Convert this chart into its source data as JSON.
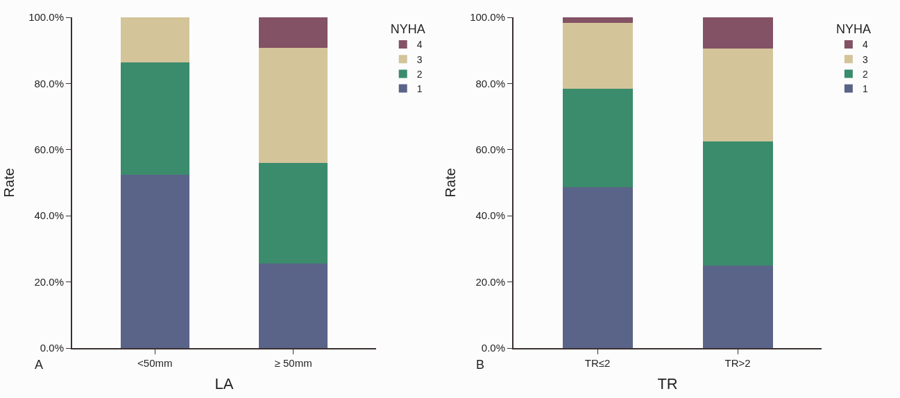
{
  "chart_data": [
    {
      "type": "bar",
      "stacked": true,
      "xlabel": "LA",
      "ylabel": "Rate",
      "legend_title": "NYHA",
      "legend": "top right",
      "categories": [
        "<50mm",
        "≥ 50mm"
      ],
      "series": [
        {
          "name": "1",
          "color": "#5a6488",
          "values": [
            52.4,
            25.5
          ]
        },
        {
          "name": "2",
          "color": "#3a8c6c",
          "values": [
            34.0,
            30.4
          ]
        },
        {
          "name": "3",
          "color": "#d3c49a",
          "values": [
            13.6,
            34.8
          ]
        },
        {
          "name": "4",
          "color": "#835264",
          "values": [
            0,
            9.3
          ]
        }
      ],
      "ylim": [
        0,
        100
      ],
      "yticks": [
        {
          "value": 0,
          "label": "0.0%"
        },
        {
          "value": 20,
          "label": "20.0%"
        },
        {
          "value": 40,
          "label": "40.0%"
        },
        {
          "value": 60,
          "label": "60.0%"
        },
        {
          "value": 80,
          "label": "80.0%"
        },
        {
          "value": 100,
          "label": "100.0%"
        }
      ],
      "annotations": [
        "A"
      ]
    },
    {
      "type": "bar",
      "stacked": true,
      "xlabel": "TR",
      "ylabel": "Rate",
      "legend_title": "NYHA",
      "legend": "top right",
      "categories": [
        "TR≤2",
        "TR>2"
      ],
      "series": [
        {
          "name": "1",
          "color": "#5a6488",
          "values": [
            48.6,
            25.0
          ]
        },
        {
          "name": "2",
          "color": "#3a8c6c",
          "values": [
            29.8,
            37.5
          ]
        },
        {
          "name": "3",
          "color": "#d3c49a",
          "values": [
            20.0,
            28.1
          ]
        },
        {
          "name": "4",
          "color": "#835264",
          "values": [
            1.6,
            9.4
          ]
        }
      ],
      "ylim": [
        0,
        100
      ],
      "yticks": [
        {
          "value": 0,
          "label": "0.0%"
        },
        {
          "value": 20,
          "label": "20.0%"
        },
        {
          "value": 40,
          "label": "40.0%"
        },
        {
          "value": 60,
          "label": "60.0%"
        },
        {
          "value": 80,
          "label": "80.0%"
        },
        {
          "value": 100,
          "label": "100.0%"
        }
      ],
      "annotations": [
        "B"
      ]
    }
  ]
}
